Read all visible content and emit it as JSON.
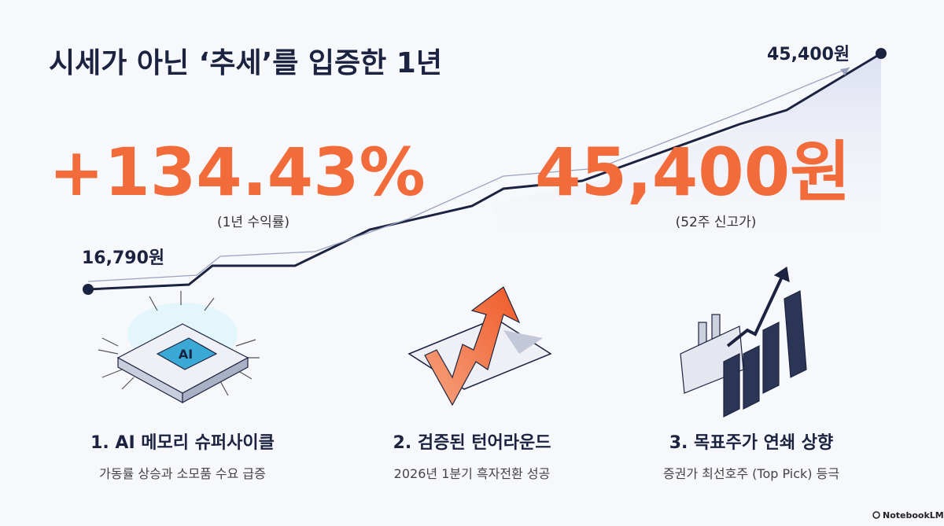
{
  "title": "시세가 아닌 ‘추세’를 입증한 1년",
  "stats": [
    {
      "value": "+134.43%",
      "caption": "(1년 수익률)"
    },
    {
      "value": "45,400원",
      "caption": "(52주 신고가)"
    }
  ],
  "trend": {
    "start_label": "16,790원",
    "end_label": "45,400원"
  },
  "items": [
    {
      "title": "1. AI 메모리 슈퍼사이클",
      "desc": "가동률 상승과 소모품 수요 급증"
    },
    {
      "title": "2. 검증된 턴어라운드",
      "desc": "2026년 1분기 흑자전환 성공"
    },
    {
      "title": "3. 목표주가 연쇄 상향",
      "desc": "증권가 최선호주 (Top Pick) 등극"
    }
  ],
  "brand": "NotebookLM"
}
